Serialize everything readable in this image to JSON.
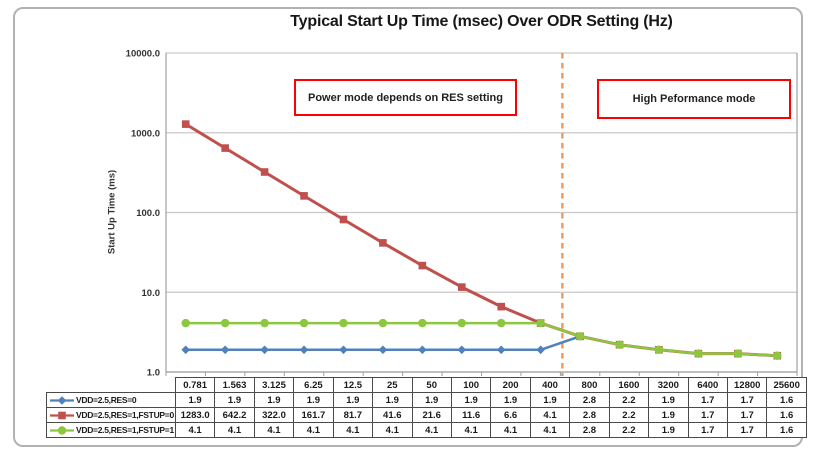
{
  "title": "Typical Start Up Time (msec) Over ODR Setting (Hz)",
  "chart_data": {
    "type": "line",
    "title": "Typical Start Up Time (msec) Over ODR Setting (Hz)",
    "xlabel": "",
    "ylabel": "Start Up Time (ms)",
    "x_unit": "Hz",
    "categories": [
      "0.781",
      "1.563",
      "3.125",
      "6.25",
      "12.5",
      "25",
      "50",
      "100",
      "200",
      "400",
      "800",
      "1600",
      "3200",
      "6400",
      "12800",
      "25600"
    ],
    "y_axis": {
      "scale": "log",
      "min": 1,
      "max": 10000,
      "tick_labels": [
        "10000.0",
        "1000.0",
        "100.0",
        "10.0",
        "1.0"
      ]
    },
    "grid": "horizontal-only",
    "legend_position": "table-rows-left",
    "series": [
      {
        "name": "VDD=2.5,RES=0",
        "color": "#4F81BD",
        "marker": "diamond",
        "values": [
          1.9,
          1.9,
          1.9,
          1.9,
          1.9,
          1.9,
          1.9,
          1.9,
          1.9,
          1.9,
          2.8,
          2.2,
          1.9,
          1.7,
          1.7,
          1.6
        ]
      },
      {
        "name": "VDD=2.5,RES=1,FSTUP=0",
        "color": "#C0504D",
        "marker": "square",
        "values": [
          1283.0,
          642.2,
          322.0,
          161.7,
          81.7,
          41.6,
          21.6,
          11.6,
          6.6,
          4.1,
          2.8,
          2.2,
          1.9,
          1.7,
          1.7,
          1.6
        ]
      },
      {
        "name": "VDD=2.5,RES=1,FSTUP=1",
        "color": "#8DC63F",
        "marker": "circle",
        "values": [
          4.1,
          4.1,
          4.1,
          4.1,
          4.1,
          4.1,
          4.1,
          4.1,
          4.1,
          4.1,
          2.8,
          2.2,
          1.9,
          1.7,
          1.7,
          1.6
        ]
      }
    ],
    "divider": {
      "between_categories": [
        "400",
        "800"
      ],
      "style": "dashed",
      "color": "#F49B5B"
    },
    "annotations": [
      {
        "label": "Power mode depends on RES setting",
        "side": "left-of-divider"
      },
      {
        "label": "High Peformance mode",
        "side": "right-of-divider"
      }
    ],
    "value_decimals": 1
  },
  "colors": {
    "gridline": "#c9c9c9",
    "axis": "#a0a0a0",
    "annotation_border": "#ff0000",
    "outer_frame": "#b2b2b2",
    "table_border": "#4a4a4a"
  }
}
